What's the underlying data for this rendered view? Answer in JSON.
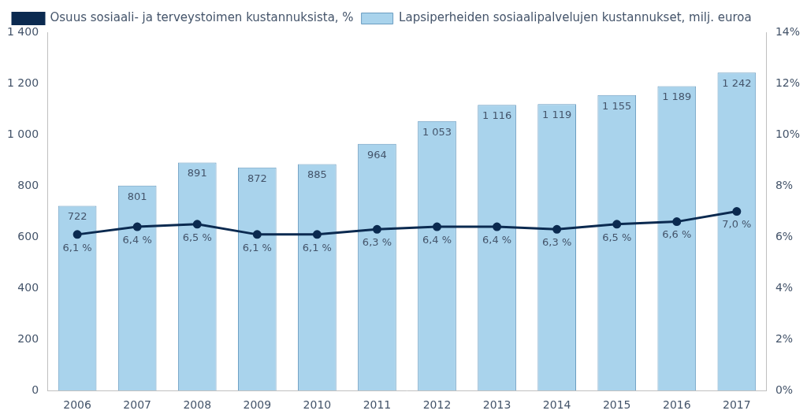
{
  "chart_data": {
    "type": "bar",
    "categories": [
      "2006",
      "2007",
      "2008",
      "2009",
      "2010",
      "2011",
      "2012",
      "2013",
      "2014",
      "2015",
      "2016",
      "2017"
    ],
    "series": [
      {
        "name": "Lapsiperheiden sosiaalipalvelujen kustannukset, milj. euroa",
        "type": "bar",
        "color": "#a9d3ec",
        "values": [
          722,
          801,
          891,
          872,
          885,
          964,
          1053,
          1116,
          1119,
          1155,
          1189,
          1242
        ],
        "value_labels": [
          "722",
          "801",
          "891",
          "872",
          "885",
          "964",
          "1 053",
          "1 116",
          "1 119",
          "1 155",
          "1 189",
          "1 242"
        ]
      },
      {
        "name": "Osuus sosiaali- ja terveystoimen kustannuksista, %",
        "type": "line",
        "color": "#0b2a50",
        "marker": "circle",
        "axis": "y2",
        "values": [
          6.1,
          6.4,
          6.5,
          6.1,
          6.1,
          6.3,
          6.4,
          6.4,
          6.3,
          6.5,
          6.6,
          7.0
        ],
        "value_labels": [
          "6,1 %",
          "6,4 %",
          "6,5 %",
          "6,1 %",
          "6,1 %",
          "6,3 %",
          "6,4 %",
          "6,4 %",
          "6,3 %",
          "6,5 %",
          "6,6 %",
          "7,0 %"
        ]
      }
    ],
    "ylim": [
      0,
      1400
    ],
    "yticks": [
      0,
      200,
      400,
      600,
      800,
      {
        "value": 1000,
        "label": "1 000"
      },
      {
        "value": 1200,
        "label": "1 200"
      },
      {
        "value": 1400,
        "label": "1 400"
      }
    ],
    "y2lim": [
      0,
      14
    ],
    "y2ticks": [
      {
        "value": 0,
        "label": "0%"
      },
      {
        "value": 2,
        "label": "2%"
      },
      {
        "value": 4,
        "label": "4%"
      },
      {
        "value": 6,
        "label": "6%"
      },
      {
        "value": 8,
        "label": "8%"
      },
      {
        "value": 10,
        "label": "10%"
      },
      {
        "value": 12,
        "label": "12%"
      },
      {
        "value": 14,
        "label": "14%"
      }
    ],
    "grid": false,
    "legend": "top",
    "data_labels": true
  }
}
